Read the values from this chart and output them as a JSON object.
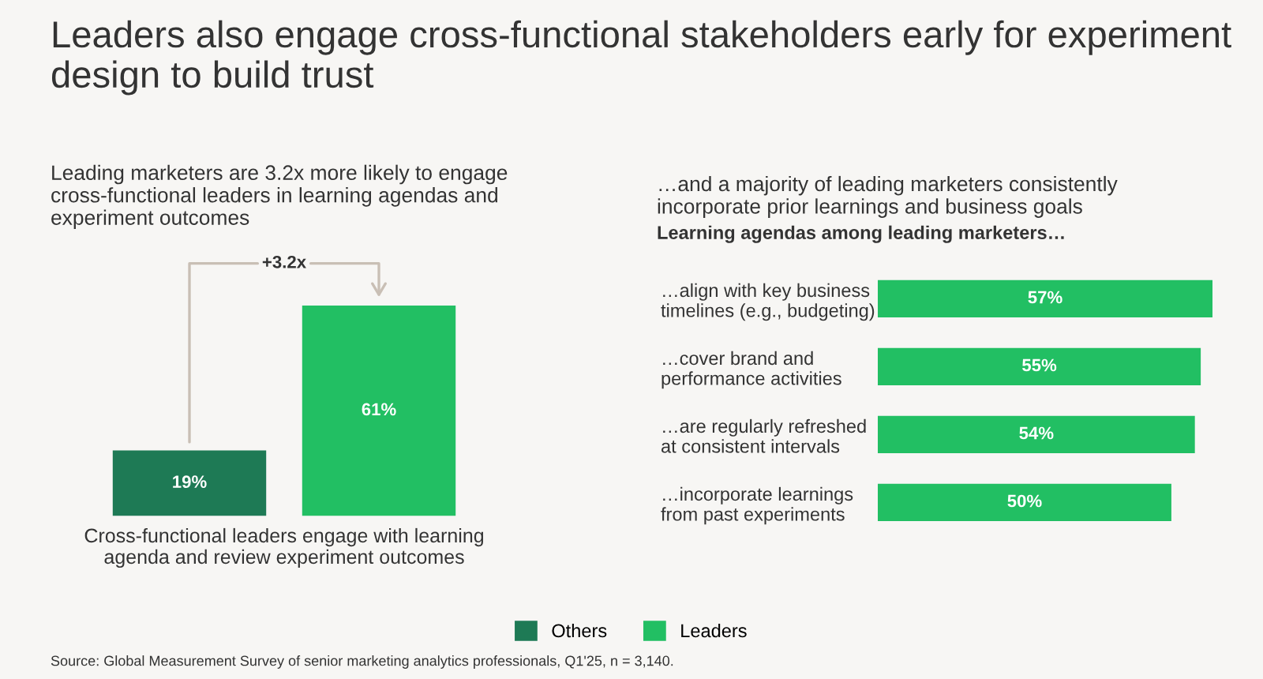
{
  "chart_data": [
    {
      "type": "bar",
      "title": "Leaders also engage cross-functional stakeholders early for experiment\ndesign to build trust",
      "subtitle": "Leading marketers are 3.2x more likely to engage\ncross-functional leaders in learning agendas and\nexperiment outcomes",
      "xlabel": "Cross-functional leaders engage with learning\nagenda and review experiment outcomes",
      "categories": [
        null,
        null
      ],
      "stacked": true,
      "series": [
        {
          "name": "Others",
          "color": "#1e7a55",
          "values": [
            19,
            null
          ],
          "value_labels": [
            "19%",
            null
          ]
        },
        {
          "name": "Leaders",
          "color": "#22bf63",
          "values": [
            null,
            61
          ],
          "value_labels": [
            null,
            "61%"
          ]
        }
      ],
      "annotations": [
        "+3.2x",
        "Source: Global Measurement Survey of senior marketing analytics professionals, Q1'25, n = 3,140."
      ],
      "legend": "bottom",
      "grid": false,
      "tick_labels": "x"
    },
    {
      "type": "bar",
      "orientation": "horizontal",
      "subtitle": "…and a majority of leading marketers consistently\nincorporate prior learnings and business goals",
      "title": "Learning agendas among leading marketers…",
      "categories": [
        "…align with key business\ntimelines (e.g., budgeting)",
        "…cover brand and\nperformance activities",
        "…are regularly refreshed\nat consistent intervals",
        "…incorporate learnings\nfrom past experiments"
      ],
      "values": [
        57,
        55,
        54,
        50
      ],
      "value_labels": [
        "57%",
        "55%",
        "54%",
        "50%"
      ],
      "color": "#22bf63",
      "grid": false,
      "tick_labels": "y"
    }
  ]
}
